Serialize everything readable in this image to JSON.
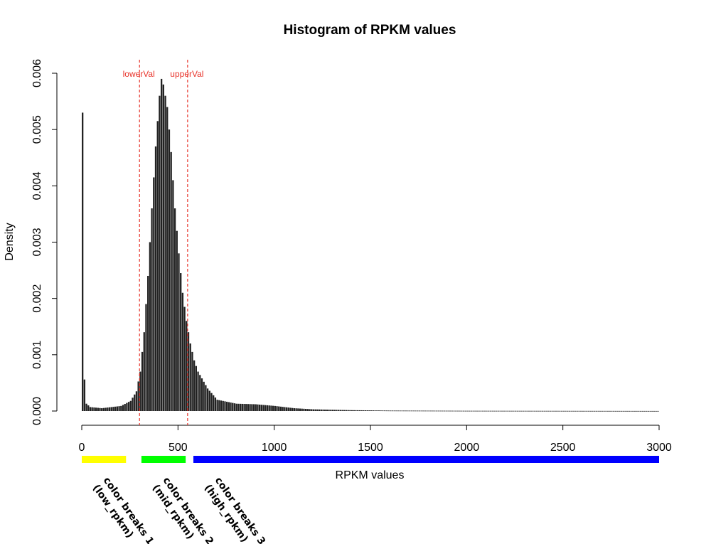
{
  "chart_data": {
    "type": "bar",
    "title": "Histogram of RPKM values",
    "xlabel": "RPKM values",
    "ylabel": "Density",
    "xlim": [
      0,
      3000
    ],
    "ylim": [
      0,
      0.006
    ],
    "xticks": [
      "0",
      "500",
      "1000",
      "1500",
      "2000",
      "2500",
      "3000"
    ],
    "yticks": [
      "0.000",
      "0.001",
      "0.002",
      "0.003",
      "0.004",
      "0.005",
      "0.006"
    ],
    "bar_color": "#222222",
    "bin_width": 10,
    "density_anchors": [
      [
        0,
        0.0053
      ],
      [
        10,
        0.00056
      ],
      [
        20,
        0.00013
      ],
      [
        40,
        7e-05
      ],
      [
        100,
        5e-05
      ],
      [
        200,
        9e-05
      ],
      [
        250,
        0.00018
      ],
      [
        280,
        0.00035
      ],
      [
        300,
        0.0007
      ],
      [
        320,
        0.0014
      ],
      [
        340,
        0.0024
      ],
      [
        360,
        0.0036
      ],
      [
        380,
        0.0047
      ],
      [
        400,
        0.0056
      ],
      [
        410,
        0.0059
      ],
      [
        420,
        0.0058
      ],
      [
        440,
        0.0054
      ],
      [
        460,
        0.0046
      ],
      [
        480,
        0.0036
      ],
      [
        500,
        0.0028
      ],
      [
        520,
        0.0021
      ],
      [
        540,
        0.0016
      ],
      [
        560,
        0.0012
      ],
      [
        580,
        0.0009
      ],
      [
        600,
        0.0007
      ],
      [
        650,
        0.0004
      ],
      [
        700,
        0.0002
      ],
      [
        800,
        0.00013
      ],
      [
        900,
        0.00012
      ],
      [
        1000,
        9e-05
      ],
      [
        1100,
        5e-05
      ],
      [
        1200,
        3e-05
      ],
      [
        1400,
        1.5e-05
      ],
      [
        1600,
        8e-06
      ],
      [
        2000,
        4e-06
      ],
      [
        3000,
        1e-06
      ]
    ],
    "reference_lines": [
      {
        "label": "lowerVal",
        "x": 300,
        "color": "#e8332a"
      },
      {
        "label": "upperVal",
        "x": 550,
        "color": "#e8332a"
      }
    ],
    "color_breaks": [
      {
        "lines": [
          "color breaks 1",
          "(low_rpkm)"
        ],
        "range": [
          0,
          230
        ],
        "color": "#ffff00"
      },
      {
        "lines": [
          "color breaks 2",
          "(mid_rpkm)"
        ],
        "range": [
          310,
          540
        ],
        "color": "#00ff00"
      },
      {
        "lines": [
          "color breaks 3",
          "(high_rpkm)"
        ],
        "range": [
          580,
          3000
        ],
        "color": "#0000ff"
      }
    ]
  }
}
